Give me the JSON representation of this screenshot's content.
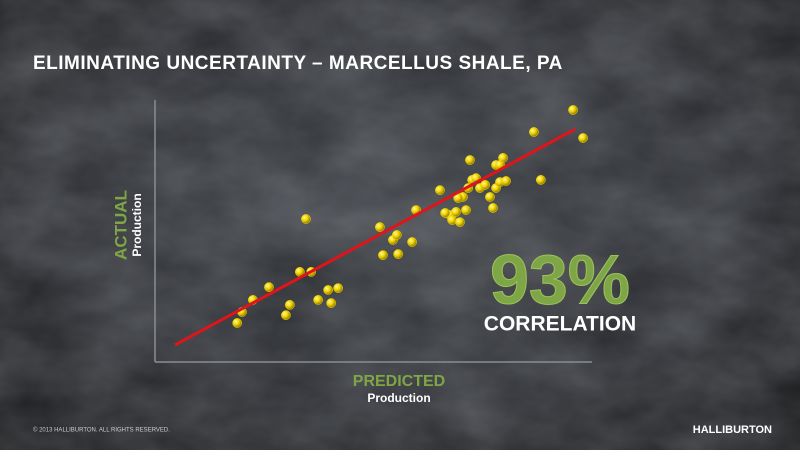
{
  "chart_data": {
    "type": "scatter",
    "title": "ELIMINATING UNCERTAINTY – MARCELLUS SHALE, PA",
    "ylabel": "ACTUAL",
    "ylabel_sub": "Production",
    "xlabel": "PREDICTED",
    "xlabel_sub": "Production",
    "annotation": "93%",
    "annotation_sub": "CORRELATION",
    "color": "#f2d600",
    "trend_color": "#e0141b",
    "xlim": [
      0,
      100
    ],
    "ylim": [
      0,
      100
    ],
    "x": [
      18.9,
      20.0,
      22.5,
      26.2,
      30.1,
      31.0,
      33.3,
      35.9,
      37.5,
      39.8,
      40.5,
      42.1,
      34.7,
      51.7,
      52.4,
      54.7,
      55.6,
      55.9,
      59.1,
      60.0,
      65.5,
      67.8,
      68.3,
      69.2,
      70.1,
      70.8,
      71.5,
      72.4,
      72.0,
      72.9,
      73.8,
      74.7,
      75.9,
      77.0,
      77.7,
      78.4,
      78.4,
      79.3,
      80.0,
      80.7,
      88.7,
      87.1,
      96.1,
      98.4,
      79.3,
      69.7,
      66.7
    ],
    "values": [
      14.9,
      19.1,
      23.7,
      28.6,
      17.9,
      21.8,
      34.4,
      34.4,
      23.7,
      27.5,
      22.5,
      28.2,
      54.6,
      51.5,
      40.8,
      46.6,
      48.5,
      41.2,
      45.8,
      58.0,
      65.6,
      56.1,
      54.2,
      57.3,
      53.4,
      63.0,
      58.0,
      77.1,
      66.4,
      69.5,
      70.2,
      66.4,
      67.6,
      63.0,
      58.8,
      75.2,
      66.4,
      68.7,
      77.9,
      69.1,
      69.5,
      87.8,
      96.2,
      85.5,
      75.2,
      62.6,
      56.9
    ],
    "trendline": {
      "x": [
        4.6,
        96.6
      ],
      "y": [
        6.5,
        88.9
      ]
    }
  },
  "footer": {
    "copyright": "© 2013 HALLIBURTON. ALL RIGHTS RESERVED.",
    "logo": "HALLIBURTON"
  }
}
